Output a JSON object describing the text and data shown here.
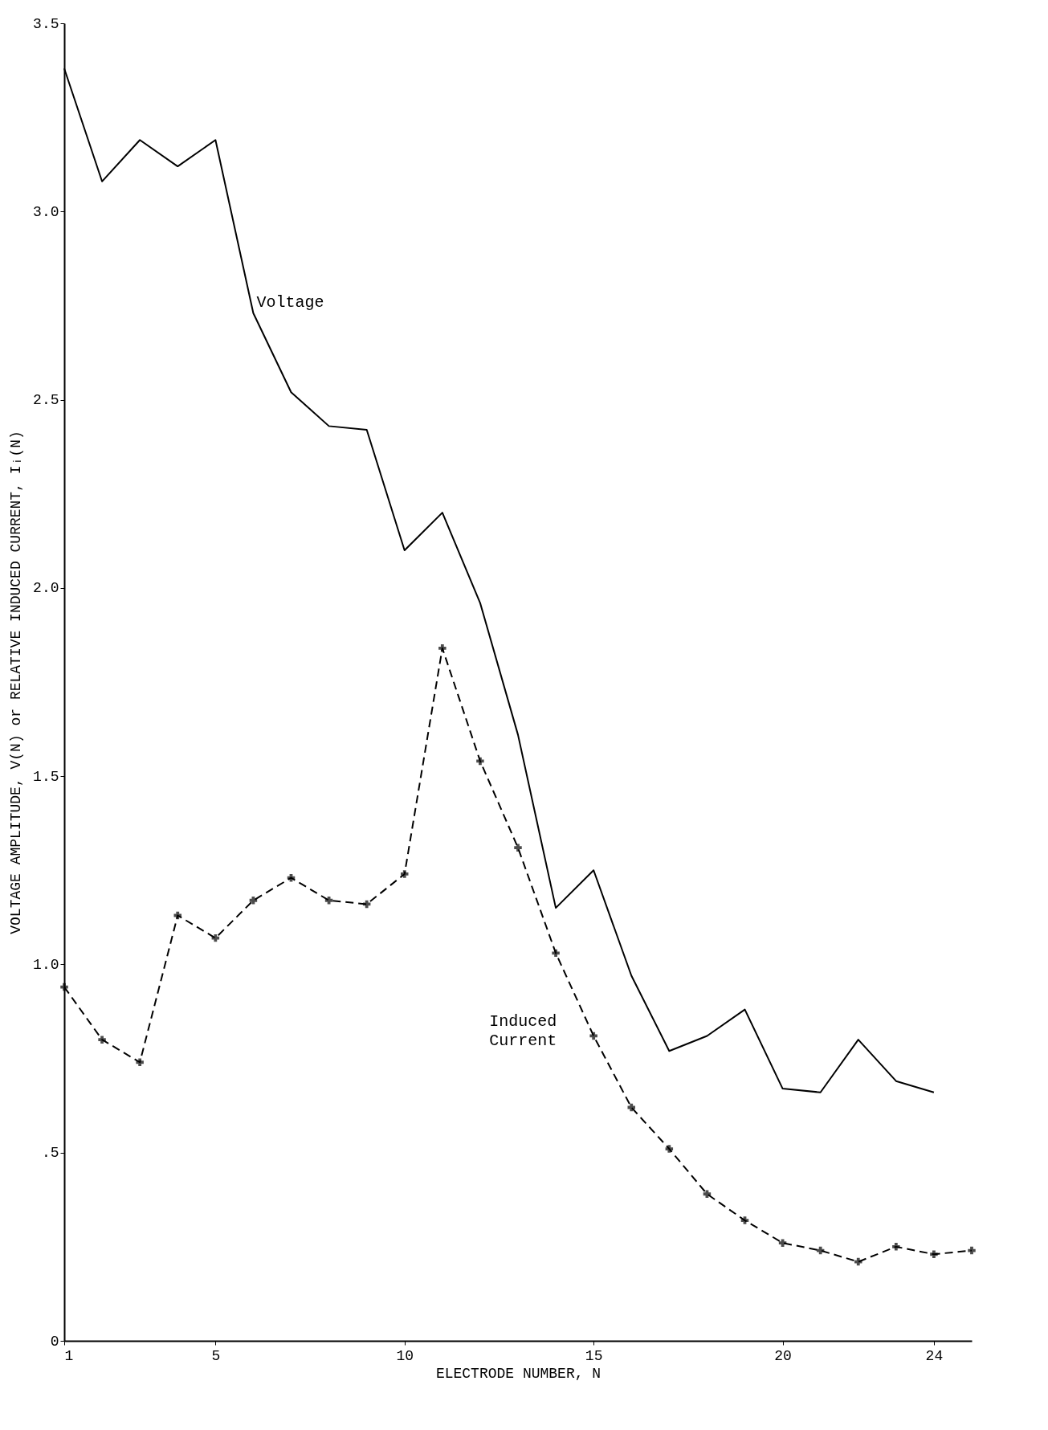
{
  "chart_data": {
    "type": "line",
    "xlabel": "ELECTRODE NUMBER, N",
    "ylabel": "VOLTAGE AMPLITUDE, V(N)  or  RELATIVE INDUCED CURRENT, Iᵢ(N)",
    "x": [
      1,
      2,
      3,
      4,
      5,
      6,
      7,
      8,
      9,
      10,
      11,
      12,
      13,
      14,
      15,
      16,
      17,
      18,
      19,
      20,
      21,
      22,
      23,
      24,
      25
    ],
    "series": [
      {
        "name": "Voltage",
        "color": "#000000",
        "line_style": "solid",
        "marker": "none",
        "x": [
          1,
          2,
          3,
          4,
          5,
          6,
          7,
          8,
          9,
          10,
          11,
          12,
          13,
          14,
          15,
          16,
          17,
          18,
          19,
          20,
          21,
          22,
          23,
          24
        ],
        "values": [
          3.38,
          3.08,
          3.19,
          3.12,
          3.19,
          2.73,
          2.52,
          2.43,
          2.42,
          2.1,
          2.2,
          1.96,
          1.61,
          1.15,
          1.25,
          0.97,
          0.77,
          0.81,
          0.88,
          0.67,
          0.66,
          0.8,
          0.69,
          0.66
        ]
      },
      {
        "name": "Induced Current",
        "color": "#000000",
        "line_style": "dashed",
        "marker": "cross",
        "values": [
          0.94,
          0.8,
          0.74,
          1.13,
          1.07,
          1.17,
          1.23,
          1.17,
          1.16,
          1.24,
          1.84,
          1.54,
          1.31,
          1.03,
          0.81,
          0.62,
          0.51,
          0.39,
          0.32,
          0.26,
          0.24,
          0.21,
          0.25,
          0.23,
          0.24
        ]
      }
    ],
    "xlim": [
      1,
      25
    ],
    "xticks": [
      1,
      5,
      10,
      15,
      20,
      24
    ],
    "ylim": [
      0,
      3.5
    ],
    "yticks": [
      0,
      {
        "value": 0.5,
        "label": ".5"
      },
      {
        "value": 1.0,
        "label": "1.0"
      },
      {
        "value": 1.5,
        "label": "1.5"
      },
      {
        "value": 2.0,
        "label": "2.0"
      },
      {
        "value": 2.5,
        "label": "2.5"
      },
      {
        "value": 3.0,
        "label": "3.0"
      },
      3.5
    ],
    "grid": false,
    "legend": false
  }
}
